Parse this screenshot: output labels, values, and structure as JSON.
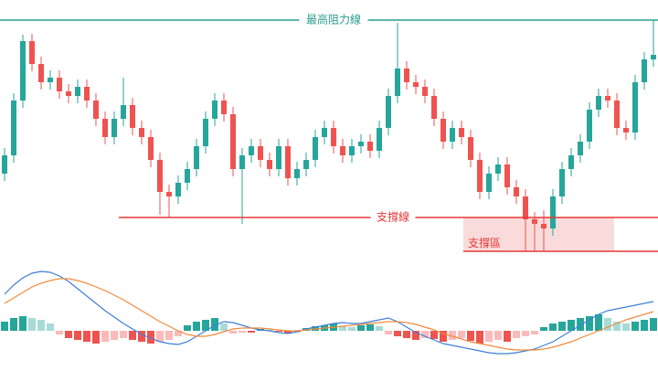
{
  "chart_data": [
    {
      "type": "candlestick",
      "ylim": [
        0,
        290
      ],
      "up_color": "#26a69a",
      "down_color": "#ef5350",
      "open": [
        100,
        120,
        180,
        245,
        220,
        200,
        205,
        190,
        185,
        195,
        180,
        160,
        140,
        160,
        175,
        150,
        140,
        115,
        80,
        75,
        90,
        105,
        130,
        160,
        180,
        165,
        105,
        120,
        130,
        115,
        105,
        130,
        95,
        105,
        115,
        140,
        150,
        130,
        120,
        130,
        135,
        125,
        150,
        185,
        215,
        200,
        195,
        185,
        160,
        135,
        150,
        140,
        115,
        80,
        100,
        110,
        85,
        75,
        50,
        45,
        40,
        75,
        105,
        120,
        135,
        170,
        185,
        180,
        150,
        145,
        200,
        225
      ],
      "high": [
        128,
        188,
        252,
        253,
        228,
        213,
        213,
        198,
        203,
        203,
        188,
        168,
        168,
        205,
        183,
        158,
        148,
        123,
        88,
        98,
        113,
        138,
        168,
        188,
        188,
        173,
        128,
        138,
        138,
        123,
        138,
        138,
        113,
        123,
        148,
        158,
        158,
        138,
        138,
        143,
        143,
        158,
        193,
        265,
        223,
        208,
        203,
        193,
        168,
        158,
        158,
        148,
        123,
        108,
        118,
        118,
        93,
        83,
        58,
        60,
        83,
        113,
        128,
        143,
        178,
        193,
        193,
        188,
        158,
        208,
        233,
        268
      ],
      "low": [
        92,
        112,
        172,
        212,
        192,
        192,
        182,
        177,
        177,
        172,
        152,
        132,
        132,
        152,
        142,
        132,
        107,
        55,
        52,
        67,
        82,
        97,
        122,
        152,
        157,
        97,
        45,
        112,
        107,
        97,
        97,
        87,
        87,
        97,
        107,
        132,
        122,
        112,
        112,
        122,
        117,
        117,
        142,
        177,
        192,
        187,
        177,
        152,
        127,
        127,
        132,
        107,
        72,
        72,
        92,
        77,
        67,
        15,
        15,
        15,
        32,
        67,
        97,
        112,
        127,
        162,
        172,
        142,
        137,
        137,
        192,
        217
      ],
      "close": [
        120,
        180,
        245,
        220,
        200,
        205,
        190,
        185,
        195,
        180,
        160,
        140,
        160,
        175,
        150,
        140,
        115,
        80,
        75,
        90,
        105,
        130,
        160,
        180,
        165,
        105,
        120,
        130,
        115,
        105,
        130,
        95,
        105,
        115,
        140,
        150,
        130,
        120,
        130,
        135,
        125,
        150,
        185,
        215,
        200,
        195,
        185,
        160,
        135,
        150,
        140,
        115,
        80,
        100,
        110,
        85,
        75,
        50,
        45,
        40,
        75,
        105,
        120,
        135,
        170,
        185,
        180,
        150,
        145,
        200,
        225,
        230
      ],
      "annotations": [
        {
          "label": "最高阻力線",
          "value": 268,
          "color": "#2a9d8f"
        },
        {
          "label": "支撐線",
          "value": 52,
          "color": "#e53935"
        }
      ],
      "zone": {
        "label": "支撐區",
        "low": 15,
        "high": 52,
        "color": "#e53935"
      }
    },
    {
      "type": "macd",
      "ylim": [
        -38,
        72
      ],
      "histogram": [
        10,
        14,
        16,
        14,
        12,
        8,
        -4,
        -8,
        -10,
        -12,
        -14,
        -12,
        -10,
        -8,
        -10,
        -12,
        -14,
        -12,
        -10,
        -6,
        6,
        10,
        12,
        14,
        8,
        -3,
        -2,
        -2,
        2,
        1,
        -1,
        -3,
        -2,
        3,
        5,
        6,
        8,
        5,
        4,
        6,
        7,
        5,
        -4,
        -6,
        -8,
        -10,
        -8,
        -9,
        -12,
        -10,
        -8,
        -11,
        -14,
        -12,
        -10,
        -12,
        -8,
        -6,
        -4,
        4,
        8,
        10,
        12,
        14,
        16,
        18,
        14,
        10,
        8,
        10,
        12,
        14
      ],
      "series": [
        {
          "color": "#3f7fd6",
          "values": [
            40,
            50,
            58,
            63,
            65,
            64,
            60,
            54,
            46,
            38,
            30,
            22,
            15,
            8,
            2,
            -4,
            -8,
            -12,
            -14,
            -15,
            -12,
            -6,
            0,
            6,
            10,
            9,
            6,
            3,
            1,
            0,
            -2,
            -3,
            -1,
            2,
            4,
            6,
            8,
            9,
            8,
            8,
            10,
            12,
            14,
            10,
            4,
            -2,
            -6,
            -10,
            -14,
            -16,
            -18,
            -20,
            -22,
            -24,
            -25,
            -25,
            -24,
            -22,
            -20,
            -16,
            -12,
            -6,
            0,
            6,
            12,
            18,
            22,
            24,
            26,
            28,
            30,
            32
          ]
        },
        {
          "color": "#f08a3c",
          "values": [
            30,
            36,
            42,
            48,
            52,
            55,
            57,
            57,
            55,
            52,
            48,
            44,
            39,
            34,
            28,
            22,
            16,
            10,
            5,
            0,
            -4,
            -6,
            -6,
            -4,
            -1,
            2,
            3,
            3,
            3,
            2,
            1,
            0,
            0,
            1,
            2,
            3,
            4,
            5,
            6,
            7,
            8,
            9,
            10,
            10,
            9,
            7,
            4,
            1,
            -3,
            -6,
            -9,
            -12,
            -14,
            -16,
            -18,
            -20,
            -21,
            -21,
            -21,
            -20,
            -18,
            -15,
            -12,
            -8,
            -4,
            0,
            4,
            8,
            12,
            15,
            18,
            21
          ]
        }
      ],
      "up_color": "#26a69a",
      "down_color": "#ef5350"
    }
  ]
}
